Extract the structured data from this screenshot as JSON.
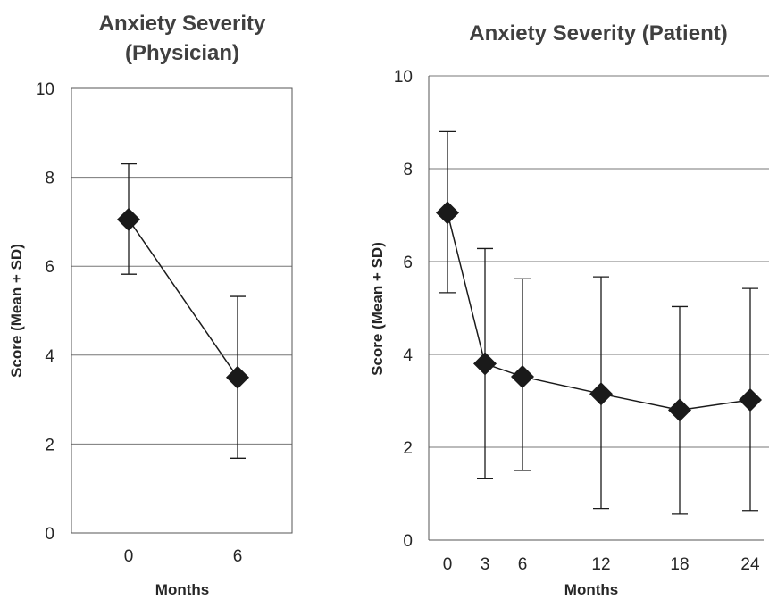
{
  "chart_data": [
    {
      "type": "line",
      "title_lines": [
        "Anxiety Severity",
        "(Physician)"
      ],
      "xlabel": "Months",
      "ylabel": "Score (Mean + SD)",
      "ylim": [
        0,
        10
      ],
      "yticks": [
        "0",
        "2",
        "4",
        "6",
        "8",
        "10"
      ],
      "categories": [
        "0",
        "6"
      ],
      "series": [
        {
          "values": [
            7.05,
            3.5
          ],
          "sd_low": [
            5.82,
            1.68
          ],
          "sd_high": [
            8.3,
            5.32
          ]
        }
      ],
      "grid": true,
      "marker": "diamond",
      "color": "#1a1a1a"
    },
    {
      "type": "line",
      "title_lines": [
        "Anxiety Severity (Patient)"
      ],
      "xlabel": "Months",
      "ylabel": "Score (Mean + SD)",
      "ylim": [
        0,
        10
      ],
      "yticks": [
        "0",
        "2",
        "4",
        "6",
        "8",
        "10"
      ],
      "categories": [
        "0",
        "3",
        "6",
        "12",
        "18",
        "24"
      ],
      "series": [
        {
          "values": [
            7.05,
            3.8,
            3.52,
            3.15,
            2.8,
            3.02
          ],
          "sd_low": [
            5.33,
            1.32,
            1.5,
            0.68,
            0.56,
            0.64
          ],
          "sd_high": [
            8.8,
            6.28,
            5.63,
            5.67,
            5.03,
            5.42
          ]
        }
      ],
      "grid": true,
      "marker": "diamond",
      "color": "#1a1a1a"
    }
  ]
}
